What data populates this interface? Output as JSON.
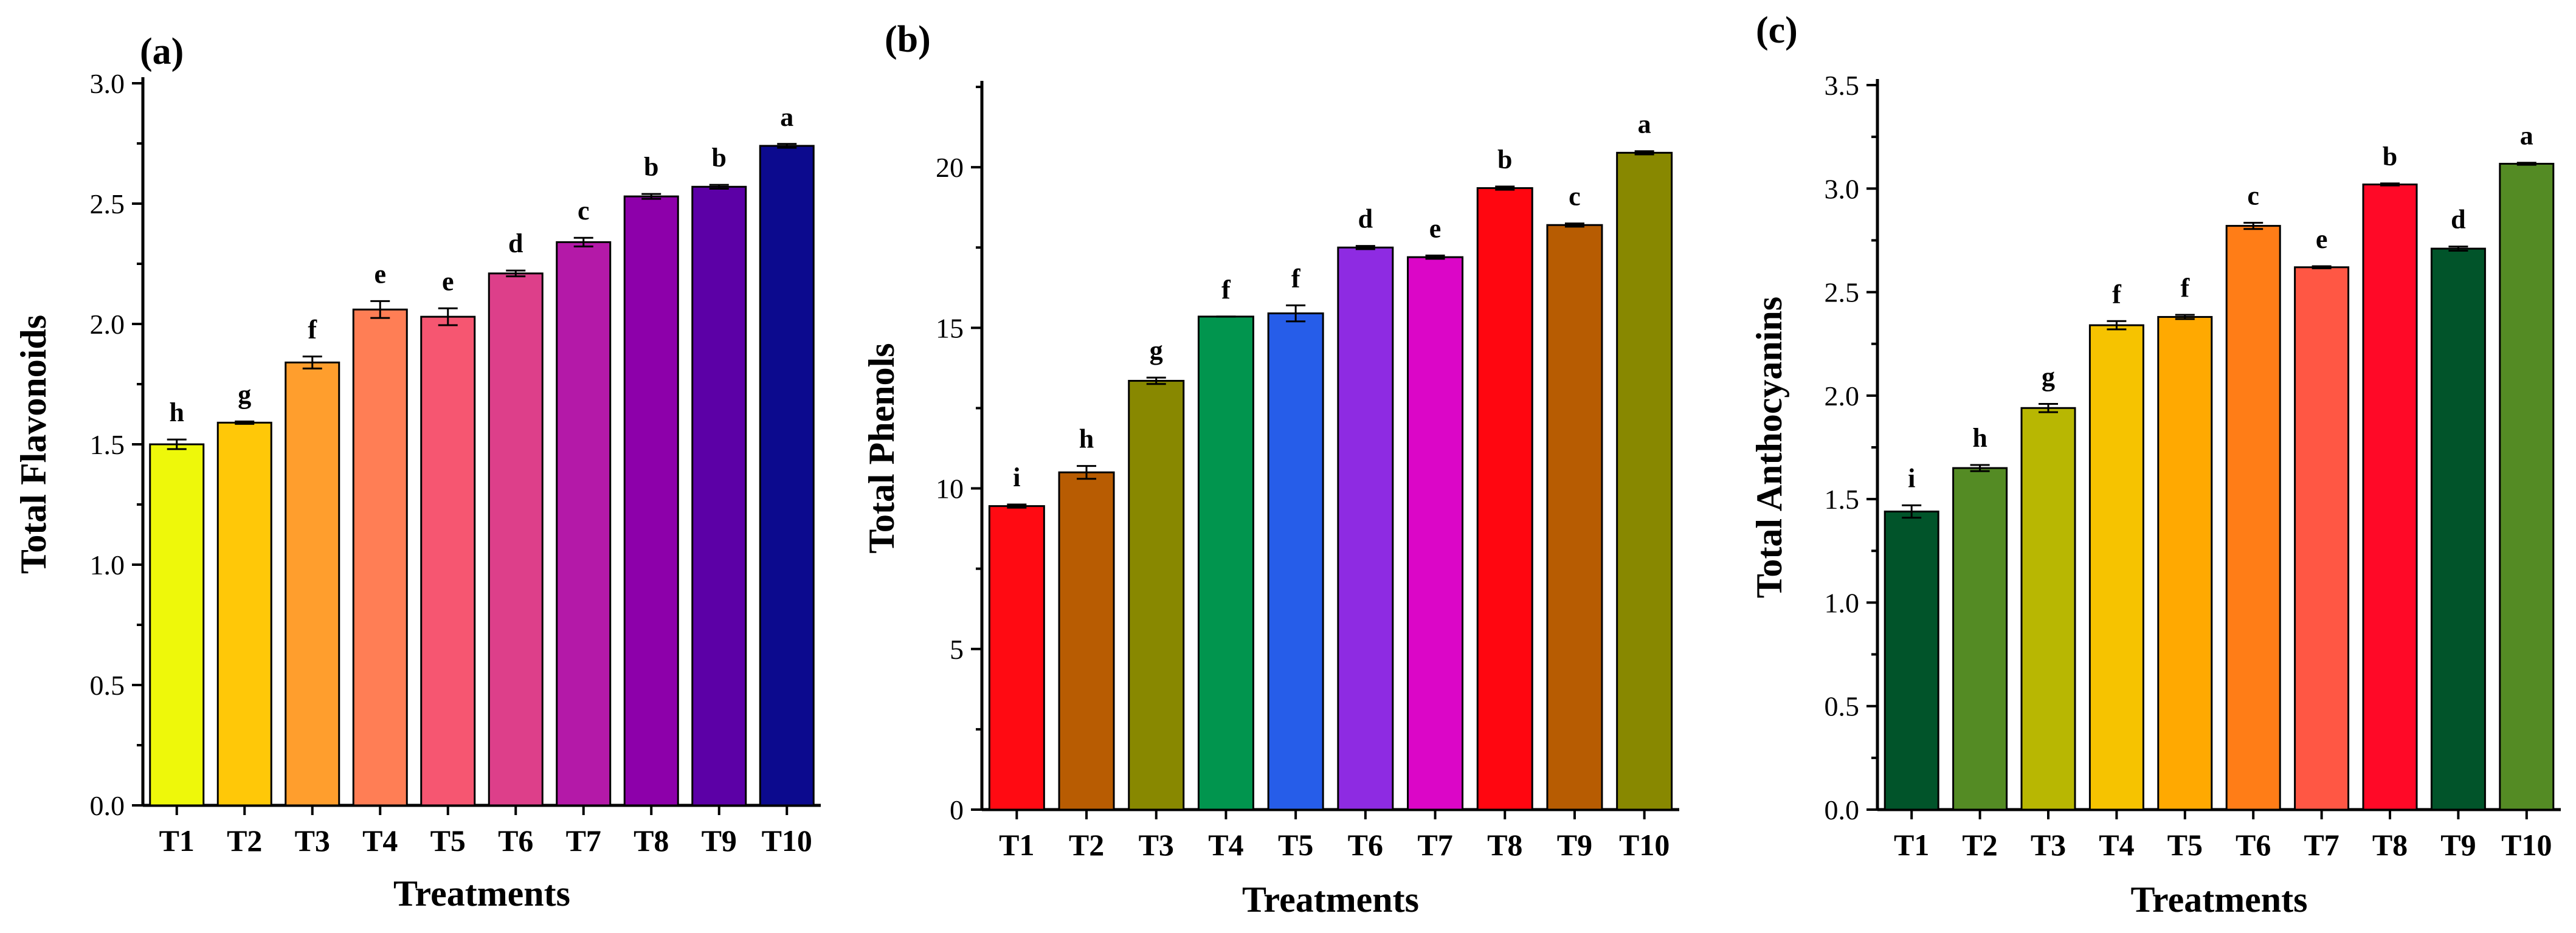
{
  "chart_data": [
    {
      "type": "bar",
      "panel_label": "(a)",
      "xlabel": "Treatments",
      "ylabel": "Total Flavonoids",
      "categories": [
        "T1",
        "T2",
        "T3",
        "T4",
        "T5",
        "T6",
        "T7",
        "T8",
        "T9",
        "T10"
      ],
      "values": [
        1.5,
        1.59,
        1.84,
        2.06,
        2.03,
        2.21,
        2.34,
        2.53,
        2.57,
        2.74
      ],
      "errors": [
        0.02,
        0.005,
        0.025,
        0.035,
        0.035,
        0.012,
        0.018,
        0.01,
        0.008,
        0.008
      ],
      "significance": [
        "h",
        "g",
        "f",
        "e",
        "e",
        "d",
        "c",
        "b",
        "b",
        "a"
      ],
      "colors": [
        "#EEF80A",
        "#FFC808",
        "#FF9E2D",
        "#FF7E55",
        "#F65671",
        "#DD3F8A",
        "#B419A8",
        "#8D00AA",
        "#5C00A6",
        "#0C0A8E"
      ],
      "ylim": [
        0,
        3.0
      ],
      "yticks": [
        "0.0",
        "0.5",
        "1.0",
        "1.5",
        "2.0",
        "2.5",
        "3.0"
      ],
      "ytick_values": [
        0,
        0.5,
        1.0,
        1.5,
        2.0,
        2.5,
        3.0
      ]
    },
    {
      "type": "bar",
      "panel_label": "(b)",
      "xlabel": "Treatments",
      "ylabel": "Total Phenols",
      "categories": [
        "T1",
        "T2",
        "T3",
        "T4",
        "T5",
        "T6",
        "T7",
        "T8",
        "T9",
        "T10"
      ],
      "values": [
        9.45,
        10.5,
        13.35,
        15.35,
        15.45,
        17.5,
        17.2,
        19.35,
        18.2,
        20.45
      ],
      "errors": [
        0.05,
        0.2,
        0.1,
        0.0,
        0.25,
        0.05,
        0.05,
        0.05,
        0.05,
        0.05
      ],
      "significance": [
        "i",
        "h",
        "g",
        "f",
        "f",
        "d",
        "e",
        "b",
        "c",
        "a"
      ],
      "colors": [
        "#FF0A12",
        "#B85C02",
        "#888800",
        "#01954E",
        "#265DE9",
        "#8E2BE2",
        "#DB06C7",
        "#FF0610",
        "#B75C02",
        "#888800"
      ],
      "ylim": [
        0,
        22.5
      ],
      "yticks": [
        "0",
        "5",
        "10",
        "15",
        "20"
      ],
      "ytick_values": [
        0,
        5,
        10,
        15,
        20
      ]
    },
    {
      "type": "bar",
      "panel_label": "(c)",
      "xlabel": "Treatments",
      "ylabel": "Total Anthocyanins",
      "categories": [
        "T1",
        "T2",
        "T3",
        "T4",
        "T5",
        "T6",
        "T7",
        "T8",
        "T9",
        "T10"
      ],
      "values": [
        1.44,
        1.65,
        1.94,
        2.34,
        2.38,
        2.82,
        2.62,
        3.02,
        2.71,
        3.12
      ],
      "errors": [
        0.03,
        0.015,
        0.02,
        0.02,
        0.01,
        0.015,
        0.005,
        0.005,
        0.01,
        0.005
      ],
      "significance": [
        "i",
        "h",
        "g",
        "f",
        "f",
        "c",
        "e",
        "b",
        "d",
        "a"
      ],
      "colors": [
        "#01542A",
        "#548B24",
        "#B8B702",
        "#F6C300",
        "#FFA901",
        "#FF7D17",
        "#FF5744",
        "#FF0927",
        "#01542A",
        "#548B24"
      ],
      "ylim": [
        0,
        3.5
      ],
      "yticks": [
        "0.0",
        "0.5",
        "1.0",
        "1.5",
        "2.0",
        "2.5",
        "3.0",
        "3.5"
      ],
      "ytick_values": [
        0,
        0.5,
        1.0,
        1.5,
        2.0,
        2.5,
        3.0,
        3.5
      ]
    }
  ]
}
